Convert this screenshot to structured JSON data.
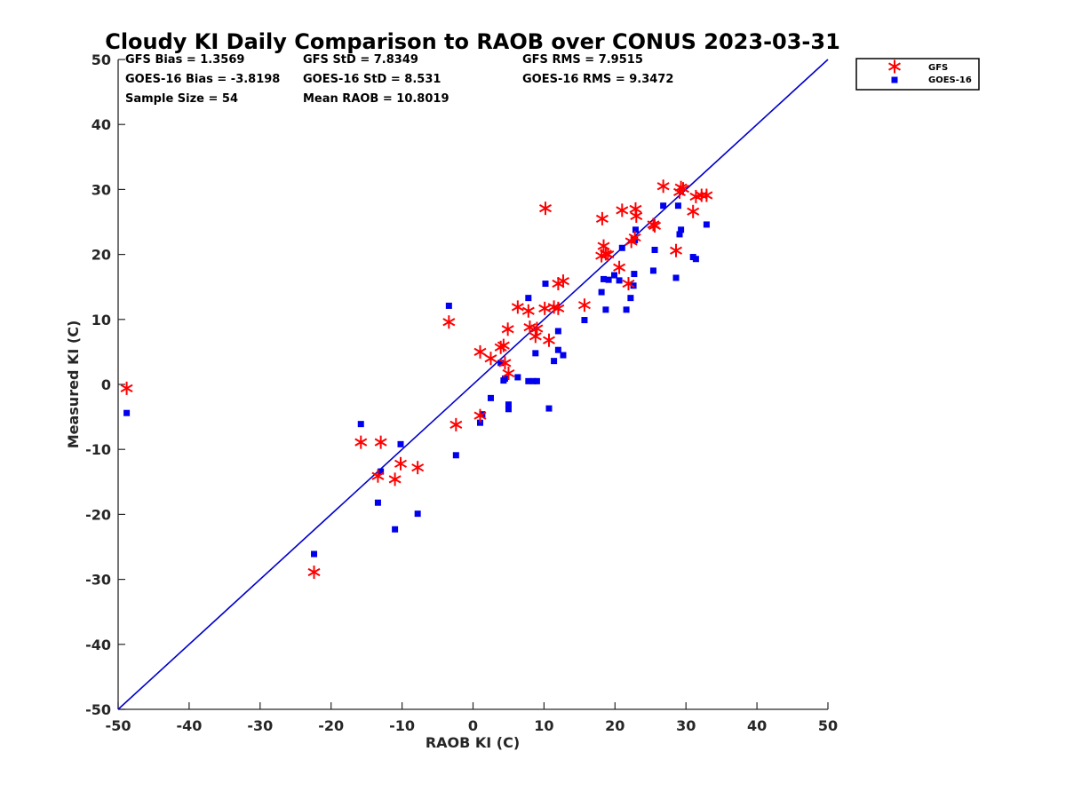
{
  "chart_data": {
    "type": "scatter",
    "title": "Cloudy KI Daily Comparison to RAOB over CONUS 2023-03-31",
    "xlabel": "RAOB KI (C)",
    "ylabel": "Measured KI (C)",
    "xlim": [
      -50,
      50
    ],
    "ylim": [
      -50,
      50
    ],
    "xticks": [
      "-50",
      "-40",
      "-30",
      "-20",
      "-10",
      "0",
      "10",
      "20",
      "30",
      "40",
      "50"
    ],
    "yticks": [
      "-50",
      "-40",
      "-30",
      "-20",
      "-10",
      "0",
      "10",
      "20",
      "30",
      "40",
      "50"
    ],
    "grid": false,
    "legend_position": "top-right outside",
    "reference_line": [
      [
        -50,
        -50
      ],
      [
        50,
        50
      ]
    ],
    "reference_line_color": "#0000cc",
    "stats": [
      "GFS Bias = 1.3569",
      "GFS StD = 7.8349",
      "GFS RMS = 7.9515",
      "GOES-16 Bias = -3.8198",
      "GOES-16 StD = 8.531",
      "GOES-16 RMS = 9.3472",
      "Sample Size = 54",
      "Mean RAOB = 10.8019"
    ],
    "series": [
      {
        "name": "GFS",
        "marker": "asterisk",
        "color": "#ff0000",
        "points": [
          [
            -48.8,
            -0.6
          ],
          [
            -22.4,
            -28.9
          ],
          [
            -15.8,
            -8.9
          ],
          [
            -13.0,
            -8.9
          ],
          [
            -13.4,
            -14.1
          ],
          [
            -11.0,
            -14.6
          ],
          [
            -10.2,
            -12.2
          ],
          [
            -7.8,
            -12.8
          ],
          [
            -2.4,
            -6.2
          ],
          [
            -3.4,
            9.6
          ],
          [
            1.0,
            -4.8
          ],
          [
            1.0,
            5.0
          ],
          [
            2.5,
            4.0
          ],
          [
            3.9,
            5.7
          ],
          [
            4.3,
            6.0
          ],
          [
            4.5,
            3.3
          ],
          [
            5.0,
            1.7
          ],
          [
            4.9,
            8.5
          ],
          [
            6.3,
            11.9
          ],
          [
            7.8,
            11.3
          ],
          [
            8.0,
            8.8
          ],
          [
            8.8,
            7.4
          ],
          [
            9.0,
            8.6
          ],
          [
            10.7,
            6.8
          ],
          [
            11.4,
            11.9
          ],
          [
            12.0,
            11.7
          ],
          [
            12.0,
            15.5
          ],
          [
            12.7,
            15.9
          ],
          [
            10.2,
            27.1
          ],
          [
            15.7,
            12.2
          ],
          [
            18.1,
            19.8
          ],
          [
            18.4,
            21.3
          ],
          [
            18.7,
            20.1
          ],
          [
            19.0,
            20.0
          ],
          [
            18.2,
            25.5
          ],
          [
            20.6,
            18.0
          ],
          [
            21.0,
            26.8
          ],
          [
            21.9,
            15.5
          ],
          [
            22.3,
            22.0
          ],
          [
            22.8,
            22.6
          ],
          [
            22.9,
            27.0
          ],
          [
            23.0,
            25.9
          ],
          [
            25.4,
            24.6
          ],
          [
            25.6,
            24.4
          ],
          [
            26.8,
            30.5
          ],
          [
            28.6,
            20.6
          ],
          [
            29.1,
            29.6
          ],
          [
            29.3,
            30.3
          ],
          [
            29.6,
            30.1
          ],
          [
            31.0,
            26.6
          ],
          [
            31.4,
            28.9
          ],
          [
            32.2,
            29.1
          ],
          [
            32.9,
            29.1
          ],
          [
            10.1,
            11.7
          ]
        ]
      },
      {
        "name": "GOES-16",
        "marker": "square",
        "color": "#0000ee",
        "points": [
          [
            -48.8,
            -4.4
          ],
          [
            -22.4,
            -26.1
          ],
          [
            -15.8,
            -6.1
          ],
          [
            -13.4,
            -18.2
          ],
          [
            -13.0,
            -13.4
          ],
          [
            -11.0,
            -22.3
          ],
          [
            -10.2,
            -9.2
          ],
          [
            -7.8,
            -19.9
          ],
          [
            -3.4,
            12.1
          ],
          [
            -2.4,
            -10.9
          ],
          [
            1.0,
            -5.9
          ],
          [
            1.3,
            -4.6
          ],
          [
            2.5,
            -2.1
          ],
          [
            3.9,
            3.3
          ],
          [
            4.3,
            0.6
          ],
          [
            4.5,
            0.9
          ],
          [
            5.0,
            -3.1
          ],
          [
            5.0,
            -3.8
          ],
          [
            6.3,
            1.1
          ],
          [
            7.8,
            13.3
          ],
          [
            7.8,
            0.5
          ],
          [
            8.5,
            0.5
          ],
          [
            8.8,
            4.8
          ],
          [
            9.0,
            0.5
          ],
          [
            10.2,
            15.5
          ],
          [
            10.7,
            -3.7
          ],
          [
            11.4,
            3.6
          ],
          [
            12.0,
            8.2
          ],
          [
            12.0,
            5.3
          ],
          [
            12.7,
            4.5
          ],
          [
            15.7,
            9.9
          ],
          [
            18.1,
            14.2
          ],
          [
            18.4,
            16.2
          ],
          [
            18.7,
            11.5
          ],
          [
            19.1,
            16.1
          ],
          [
            19.9,
            16.8
          ],
          [
            20.6,
            16.0
          ],
          [
            21.0,
            21.0
          ],
          [
            21.6,
            11.5
          ],
          [
            22.2,
            13.3
          ],
          [
            22.6,
            15.2
          ],
          [
            22.7,
            17.0
          ],
          [
            22.8,
            22.2
          ],
          [
            22.9,
            23.8
          ],
          [
            25.4,
            17.5
          ],
          [
            25.6,
            20.7
          ],
          [
            26.8,
            27.5
          ],
          [
            28.6,
            16.4
          ],
          [
            28.9,
            27.5
          ],
          [
            29.1,
            23.1
          ],
          [
            29.3,
            23.8
          ],
          [
            31.0,
            19.6
          ],
          [
            31.4,
            19.3
          ],
          [
            32.9,
            24.6
          ]
        ]
      }
    ]
  }
}
